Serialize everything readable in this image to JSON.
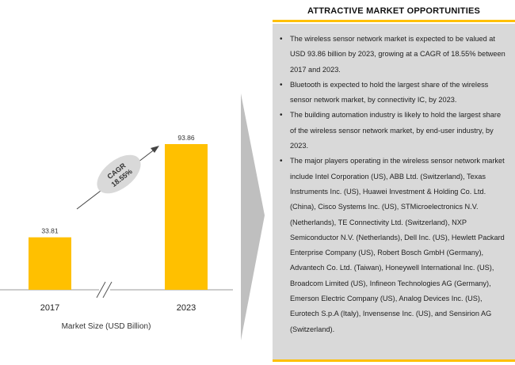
{
  "chart_data": {
    "type": "bar",
    "categories": [
      "2017",
      "2023"
    ],
    "values": [
      33.81,
      93.86
    ],
    "value_labels": [
      "33.81",
      "93.86"
    ],
    "xlabel": "Market Size (USD Billion)",
    "ylabel": "",
    "ylim": [
      0,
      100
    ],
    "cagr_label": "CAGR",
    "cagr_value": "18.55%",
    "axis_break": true,
    "colors": {
      "bar": "#ffc000",
      "cagr_bubble": "#d9d9d9"
    }
  },
  "panel": {
    "title": "ATTRACTIVE MARKET OPPORTUNITIES",
    "bullets": [
      "The wireless sensor network market is expected to be valued at USD 93.86 billion by 2023, growing at a CAGR of 18.55% between 2017 and 2023.",
      "Bluetooth is expected to hold the largest share of the wireless sensor network market, by connectivity IC, by 2023.",
      "The building automation industry is likely to hold the largest share of the wireless sensor network market, by end-user industry, by 2023.",
      "The major players operating in the wireless sensor network market include Intel Corporation (US), ABB Ltd. (Switzerland), Texas Instruments Inc. (US), Huawei Investment & Holding Co. Ltd. (China), Cisco Systems Inc. (US), STMicroelectronics N.V. (Netherlands), TE Connectivity Ltd. (Switzerland), NXP Semiconductor N.V. (Netherlands), Dell Inc. (US), Hewlett Packard Enterprise Company (US), Robert Bosch GmbH (Germany), Advantech Co. Ltd. (Taiwan), Honeywell International Inc. (US), Broadcom Limited (US), Infineon Technologies AG (Germany), Emerson Electric Company (US), Analog Devices Inc. (US), Eurotech S.p.A (Italy), Invensense Inc. (US), and Sensirion AG (Switzerland)."
    ],
    "colors": {
      "accent": "#ffc000",
      "box": "#d9d9d9"
    }
  }
}
